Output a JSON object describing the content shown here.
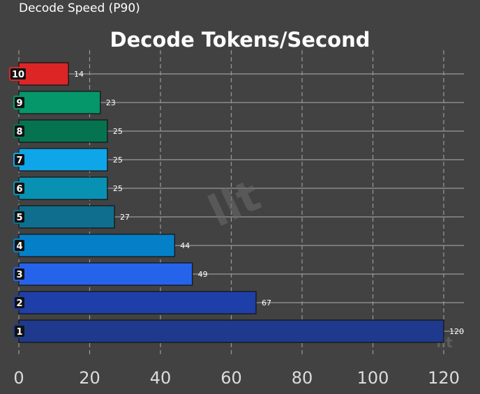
{
  "window": {
    "title": "Decode Speed (P90)"
  },
  "chart_data": {
    "type": "bar",
    "orientation": "horizontal",
    "title": "Decode Tokens/Second",
    "xlabel": "",
    "ylabel": "",
    "xlim": [
      0,
      120
    ],
    "xticks": [
      "0",
      "20",
      "40",
      "60",
      "80",
      "100",
      "120"
    ],
    "grid": true,
    "categories": [
      "1",
      "2",
      "3",
      "4",
      "5",
      "6",
      "7",
      "8",
      "9",
      "10"
    ],
    "values": [
      120,
      67,
      49,
      44,
      27,
      25,
      25,
      25,
      23,
      14
    ],
    "bar_colors": [
      "#1f3a8c",
      "#1e3fa8",
      "#2563eb",
      "#0480c8",
      "#0f6e8e",
      "#0891b2",
      "#0ea5e9",
      "#05734f",
      "#059669",
      "#dc2626"
    ],
    "badge_border_colors": [
      "#1f3a8c",
      "#1e3fa8",
      "#2563eb",
      "#0480c8",
      "#0f6e8e",
      "#0891b2",
      "#0ea5e9",
      "#05734f",
      "#059669",
      "#dc2626"
    ],
    "watermark": "llt",
    "colors": {
      "background": "#424242",
      "grid": "#9a9a9a",
      "text": "#ffffff",
      "tick_text": "#dcdcdc"
    }
  }
}
